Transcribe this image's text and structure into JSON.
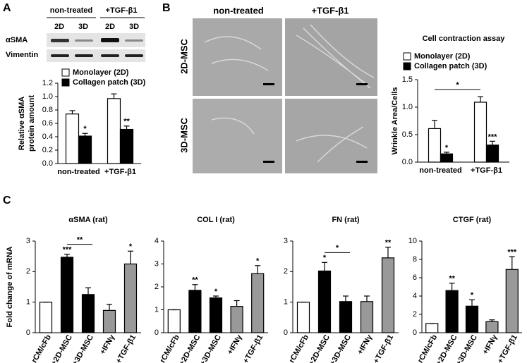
{
  "panels": {
    "a": "A",
    "b": "B",
    "c": "C"
  },
  "blot": {
    "conditions": [
      "non-treated",
      "+TGF-β1"
    ],
    "lanes": [
      "2D",
      "3D",
      "2D",
      "3D"
    ],
    "proteins": [
      "αSMA",
      "Vimentin"
    ]
  },
  "micrographs": {
    "columns": [
      "non-treated",
      "+TGF-β1"
    ],
    "rows": [
      "2D-MSC",
      "3D-MSC"
    ]
  },
  "chart_data": [
    {
      "type": "bar",
      "ylabel": [
        "Relative αSMA",
        "protein amount"
      ],
      "categories": [
        "non-treated",
        "+TGF-β1"
      ],
      "series": [
        {
          "name": "Monolayer (2D)",
          "color": "#ffffff",
          "values": [
            0.74,
            0.97
          ],
          "errors": [
            0.05,
            0.07
          ],
          "annotations": [
            null,
            null
          ]
        },
        {
          "name": "Collagen patch (3D)",
          "color": "#000000",
          "values": [
            0.41,
            0.51
          ],
          "errors": [
            0.04,
            0.05
          ],
          "annotations": [
            "*",
            "**"
          ]
        }
      ],
      "ylim": [
        0,
        1.2
      ],
      "yticks": [
        {
          "value": 0,
          "label": "0.0"
        },
        0.2,
        0.4,
        0.6,
        0.8,
        {
          "value": 1,
          "label": "1.0"
        },
        1.2
      ],
      "legend": "upper left"
    },
    {
      "type": "bar",
      "title": "Cell contraction assay",
      "ylabel": [
        "Wrinkle Area/Cells"
      ],
      "categories": [
        "non-treated",
        "+TGF-β1"
      ],
      "series": [
        {
          "name": "Monolayer (2D)",
          "color": "#ffffff",
          "values": [
            0.61,
            1.09
          ],
          "errors": [
            0.15,
            0.1
          ],
          "annotations": [
            null,
            null
          ]
        },
        {
          "name": "Collagen patch (3D)",
          "color": "#000000",
          "values": [
            0.15,
            0.31
          ],
          "errors": [
            0.03,
            0.07
          ],
          "annotations": [
            "*",
            "***"
          ]
        }
      ],
      "bracket_label": "*",
      "ylim": [
        0,
        1.5
      ],
      "yticks": [
        {
          "value": 0,
          "label": "0.0"
        },
        0.5,
        {
          "value": 1,
          "label": "1.0"
        },
        1.5
      ],
      "legend": "upper left"
    },
    {
      "type": "bar",
      "title": "αSMA (rat)",
      "ylabel": [
        "Fold change of mRNA"
      ],
      "categories": [
        "rCM/cFb",
        "+2D-MSC",
        "+3D-MSC",
        "+IFNγ",
        "+TGF-β1"
      ],
      "values": [
        1,
        2.47,
        1.25,
        0.73,
        2.25
      ],
      "errors": [
        0,
        0.1,
        0.22,
        0.2,
        0.42
      ],
      "annotations": [
        null,
        "***",
        null,
        null,
        "*"
      ],
      "colors": [
        "#ffffff",
        "#000000",
        "#000000",
        "#999999",
        "#999999"
      ],
      "bracket_label": "**",
      "ylim": [
        0,
        3
      ],
      "yticks": [
        0,
        1,
        2,
        3
      ]
    },
    {
      "type": "bar",
      "title": "COL I (rat)",
      "categories": [
        "rCM/cFb",
        "+2D-MSC",
        "+3D-MSC",
        "+IFNγ",
        "+TGF-β1"
      ],
      "values": [
        1,
        1.85,
        1.52,
        1.15,
        2.58
      ],
      "errors": [
        0,
        0.25,
        0.08,
        0.25,
        0.35
      ],
      "annotations": [
        null,
        "**",
        "*",
        null,
        "*"
      ],
      "colors": [
        "#ffffff",
        "#000000",
        "#000000",
        "#999999",
        "#999999"
      ],
      "ylim": [
        0,
        4
      ],
      "yticks": [
        0,
        1,
        2,
        3,
        4
      ]
    },
    {
      "type": "bar",
      "title": "FN (rat)",
      "categories": [
        "rCM/cFb",
        "+2D-MSC",
        "+3D-MSC",
        "+IFNγ",
        "+TGF-β1"
      ],
      "values": [
        1,
        2.02,
        1.02,
        1.02,
        2.45
      ],
      "errors": [
        0,
        0.28,
        0.18,
        0.18,
        0.35
      ],
      "annotations": [
        null,
        "*",
        null,
        null,
        "**"
      ],
      "colors": [
        "#ffffff",
        "#000000",
        "#000000",
        "#999999",
        "#999999"
      ],
      "bracket_label": "*",
      "ylim": [
        0,
        3
      ],
      "yticks": [
        0,
        1,
        2,
        3
      ]
    },
    {
      "type": "bar",
      "title": "CTGF (rat)",
      "categories": [
        "rCM/cFb",
        "+2D-MSC",
        "+3D-MSC",
        "+IFNγ",
        "+TGF-β1"
      ],
      "values": [
        1,
        4.6,
        2.9,
        1.2,
        6.9
      ],
      "errors": [
        0,
        0.8,
        0.7,
        0.2,
        1.4
      ],
      "annotations": [
        null,
        "**",
        "*",
        null,
        "***"
      ],
      "colors": [
        "#ffffff",
        "#000000",
        "#000000",
        "#999999",
        "#999999"
      ],
      "ylim": [
        0,
        10
      ],
      "yticks": [
        0,
        2,
        4,
        6,
        8,
        10
      ]
    }
  ]
}
